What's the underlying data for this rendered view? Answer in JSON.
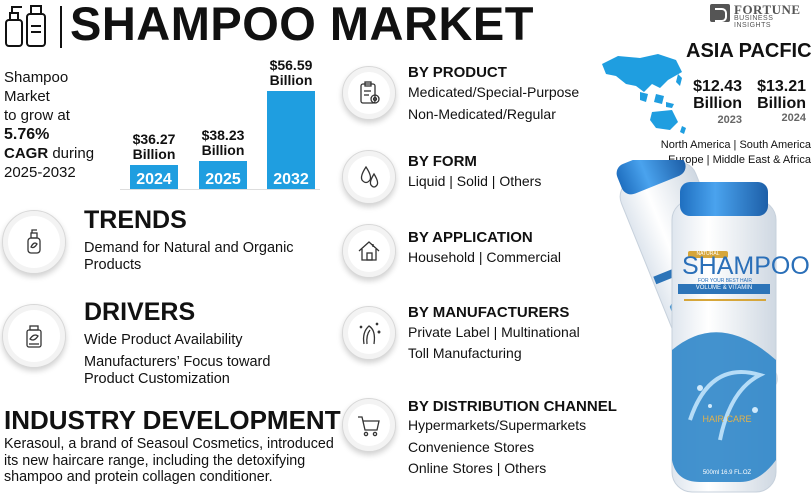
{
  "header": {
    "title": "SHAMPOO MARKET",
    "brand_name": "FORTUNE",
    "brand_sub": "BUSINESS INSIGHTS",
    "logo_icon": "shampoo-bottles-icon"
  },
  "growth": {
    "line1": "Shampoo",
    "line2": "Market",
    "line3": "to grow at",
    "cagr": "5.76%",
    "line5_a": "CAGR",
    "line5_b": " during",
    "period": "2025-2032"
  },
  "chart_data": {
    "type": "bar",
    "categories": [
      "2024",
      "2025",
      "2032"
    ],
    "values": [
      36.27,
      38.23,
      56.59
    ],
    "value_labels": [
      "$36.27 Billion",
      "$38.23 Billion",
      "$56.59 Billion"
    ],
    "unit": "Billion USD",
    "color": "#1f9ee0"
  },
  "bar_labels": [
    {
      "amount": "$36.27",
      "unit": "Billion",
      "year": "2024"
    },
    {
      "amount": "$38.23",
      "unit": "Billion",
      "year": "2025"
    },
    {
      "amount": "$56.59",
      "unit": "Billion",
      "year": "2032"
    }
  ],
  "trends": {
    "heading": "TRENDS",
    "text": "Demand for Natural and Organic Products",
    "line1": "Demand for Natural and Organic",
    "line2": "Products",
    "icon": "natural-bottle-icon"
  },
  "drivers": {
    "heading": "DRIVERS",
    "item1": "Wide Product Availability",
    "item2_line1": "Manufacturers’ Focus toward",
    "item2_line2": "Product Customization",
    "icon": "product-label-icon"
  },
  "industry": {
    "heading": "INDUSTRY DEVELOPMENT",
    "line1": "Kerasoul, a brand of Seasoul Cosmetics, introduced",
    "line2": "its new haircare range, including the detoxifying",
    "line3": "shampoo and protein collagen conditioner."
  },
  "segments": [
    {
      "heading": "BY PRODUCT",
      "lines": [
        "Medicated/Special-Purpose",
        "Non-Medicated/Regular"
      ],
      "icon": "clipboard-gear-icon"
    },
    {
      "heading": "BY FORM",
      "lines": [
        "Liquid  |  Solid  |  Others"
      ],
      "icon": "drops-icon"
    },
    {
      "heading": "BY APPLICATION",
      "lines": [
        "Household  |  Commercial"
      ],
      "icon": "house-icon"
    },
    {
      "heading": "BY MANUFACTURERS",
      "lines": [
        "Private Label  |  Multinational",
        "Toll Manufacturing"
      ],
      "icon": "hair-sparkle-icon"
    },
    {
      "heading": "BY DISTRIBUTION CHANNEL",
      "lines": [
        "Hypermarkets/Supermarkets",
        "Convenience Stores",
        "Online Stores  |  Others"
      ],
      "icon": "shopping-cart-icon"
    }
  ],
  "asia_pacific": {
    "title": "ASIA PACFIC",
    "values": [
      {
        "amount": "$12.43",
        "unit": "Billion",
        "year": "2023"
      },
      {
        "amount": "$13.21",
        "unit": "Billion",
        "year": "2024"
      }
    ],
    "regions_line1": "North America  |  South America",
    "regions_line2": "Europe  |  Middle East & Africa",
    "map_color": "#1f9ee0"
  },
  "bottles": {
    "brand": "SHAMPOO",
    "tagline": "FOR YOUR BEST HAIR",
    "variant": "VOLUME & VITAMIN",
    "category": "HAIR CARE",
    "volume": "500ml 16.9 FL.OZ",
    "badge": "NATURAL",
    "cap_color": "#2e8bd6"
  }
}
